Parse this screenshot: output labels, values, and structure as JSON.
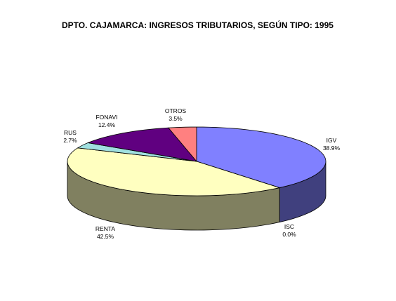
{
  "chart_data": {
    "type": "pie",
    "style": "3d",
    "title": "DPTO. CAJAMARCA: INGRESOS TRIBUTARIOS, SEGÚN TIPO: 1995",
    "slices": [
      {
        "name": "IGV",
        "percent_label": "38.9%",
        "value": 38.9,
        "color": "#8080FF",
        "side_color": "#40407E"
      },
      {
        "name": "ISC",
        "percent_label": "0.0%",
        "value": 0.0,
        "color": "#802060",
        "side_color": "#401030"
      },
      {
        "name": "RENTA",
        "percent_label": "42.5%",
        "value": 42.5,
        "color": "#FFFFC0",
        "side_color": "#808060"
      },
      {
        "name": "RUS",
        "percent_label": "2.7%",
        "value": 2.7,
        "color": "#A0E0E0",
        "side_color": "#507070"
      },
      {
        "name": "FONAVI",
        "percent_label": "12.4%",
        "value": 12.4,
        "color": "#600080",
        "side_color": "#300040"
      },
      {
        "name": "OTROS",
        "percent_label": "3.5%",
        "value": 3.5,
        "color": "#FF8080",
        "side_color": "#804040"
      }
    ]
  }
}
